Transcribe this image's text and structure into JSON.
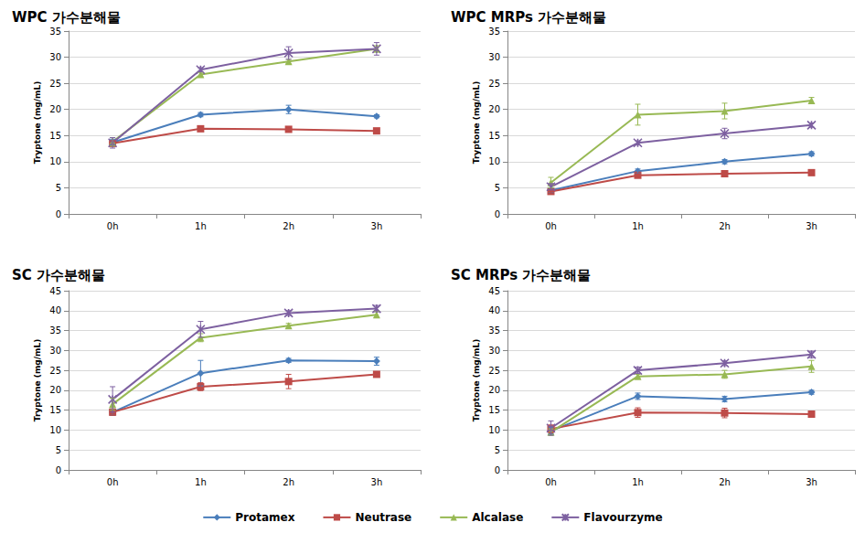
{
  "chart_data": [
    {
      "type": "line",
      "title": "WPC 가수분해물",
      "y_label": "Tryptone (mg/mL)",
      "categories": [
        "0h",
        "1h",
        "2h",
        "3h"
      ],
      "ylim": [
        0,
        35
      ],
      "yticks": [
        0,
        5,
        10,
        15,
        20,
        25,
        30,
        35
      ],
      "grid": true,
      "legend": "bottom",
      "series": [
        {
          "name": "Protamex",
          "color": "#4a7ebb",
          "marker": "diamond",
          "values": [
            13.7,
            19.0,
            20.0,
            18.7
          ],
          "errors": [
            0.6,
            0.4,
            0.8,
            0.3
          ]
        },
        {
          "name": "Neutrase",
          "color": "#be4b48",
          "marker": "square",
          "values": [
            13.5,
            16.3,
            16.2,
            15.9
          ],
          "errors": [
            0.5,
            0.3,
            0.4,
            0.3
          ]
        },
        {
          "name": "Alcalase",
          "color": "#98b954",
          "marker": "triangle",
          "values": [
            13.8,
            26.7,
            29.2,
            31.6
          ],
          "errors": [
            0.8,
            0.4,
            0.4,
            0.6
          ]
        },
        {
          "name": "Flavourzyme",
          "color": "#7d60a0",
          "marker": "x",
          "values": [
            13.6,
            27.6,
            30.8,
            31.6
          ],
          "errors": [
            1.0,
            0.4,
            1.2,
            1.2
          ]
        }
      ]
    },
    {
      "type": "line",
      "title": "WPC MRPs 가수분해물",
      "y_label": "Tryptone (mg/mL)",
      "categories": [
        "0h",
        "1h",
        "2h",
        "3h"
      ],
      "ylim": [
        0,
        35
      ],
      "yticks": [
        0,
        5,
        10,
        15,
        20,
        25,
        30,
        35
      ],
      "grid": true,
      "legend": "bottom",
      "series": [
        {
          "name": "Protamex",
          "color": "#4a7ebb",
          "marker": "diamond",
          "values": [
            4.5,
            8.2,
            10.0,
            11.5
          ],
          "errors": [
            0.5,
            0.4,
            0.4,
            0.4
          ]
        },
        {
          "name": "Neutrase",
          "color": "#be4b48",
          "marker": "square",
          "values": [
            4.3,
            7.4,
            7.7,
            7.9
          ],
          "errors": [
            0.4,
            0.3,
            0.3,
            0.3
          ]
        },
        {
          "name": "Alcalase",
          "color": "#98b954",
          "marker": "triangle",
          "values": [
            6.0,
            19.0,
            19.7,
            21.7
          ],
          "errors": [
            1.0,
            2.0,
            1.5,
            0.6
          ]
        },
        {
          "name": "Flavourzyme",
          "color": "#7d60a0",
          "marker": "x",
          "values": [
            5.2,
            13.6,
            15.4,
            17.0
          ],
          "errors": [
            0.6,
            0.4,
            1.0,
            0.4
          ]
        }
      ]
    },
    {
      "type": "line",
      "title": "SC 가수분해물",
      "y_label": "Tryptone (mg/mL)",
      "categories": [
        "0h",
        "1h",
        "2h",
        "3h"
      ],
      "ylim": [
        0,
        45
      ],
      "yticks": [
        0,
        5,
        10,
        15,
        20,
        25,
        30,
        35,
        40,
        45
      ],
      "grid": true,
      "legend": "bottom",
      "series": [
        {
          "name": "Protamex",
          "color": "#4a7ebb",
          "marker": "diamond",
          "values": [
            14.5,
            24.3,
            27.5,
            27.3
          ],
          "errors": [
            0.8,
            3.2,
            0.5,
            1.0
          ]
        },
        {
          "name": "Neutrase",
          "color": "#be4b48",
          "marker": "square",
          "values": [
            14.5,
            20.9,
            22.2,
            24.0
          ],
          "errors": [
            0.8,
            1.0,
            1.8,
            0.5
          ]
        },
        {
          "name": "Alcalase",
          "color": "#98b954",
          "marker": "triangle",
          "values": [
            16.5,
            33.2,
            36.2,
            39.0
          ],
          "errors": [
            1.5,
            1.0,
            0.6,
            0.8
          ]
        },
        {
          "name": "Flavourzyme",
          "color": "#7d60a0",
          "marker": "x",
          "values": [
            17.7,
            35.3,
            39.4,
            40.5
          ],
          "errors": [
            3.2,
            2.0,
            0.6,
            0.8
          ]
        }
      ]
    },
    {
      "type": "line",
      "title": "SC MRPs 가수분해물",
      "y_label": "Tryptone (mg/mL)",
      "categories": [
        "0h",
        "1h",
        "2h",
        "3h"
      ],
      "ylim": [
        0,
        45
      ],
      "yticks": [
        0,
        5,
        10,
        15,
        20,
        25,
        30,
        35,
        40,
        45
      ],
      "grid": true,
      "legend": "bottom",
      "series": [
        {
          "name": "Protamex",
          "color": "#4a7ebb",
          "marker": "diamond",
          "values": [
            9.8,
            18.5,
            17.8,
            19.5
          ],
          "errors": [
            0.8,
            0.8,
            0.7,
            0.5
          ]
        },
        {
          "name": "Neutrase",
          "color": "#be4b48",
          "marker": "square",
          "values": [
            10.3,
            14.4,
            14.3,
            14.0
          ],
          "errors": [
            1.0,
            1.2,
            1.2,
            0.4
          ]
        },
        {
          "name": "Alcalase",
          "color": "#98b954",
          "marker": "triangle",
          "values": [
            9.5,
            23.5,
            24.0,
            26.0
          ],
          "errors": [
            0.8,
            0.5,
            1.0,
            1.5
          ]
        },
        {
          "name": "Flavourzyme",
          "color": "#7d60a0",
          "marker": "x",
          "values": [
            10.5,
            25.0,
            26.8,
            29.0
          ],
          "errors": [
            1.8,
            0.8,
            0.6,
            0.8
          ]
        }
      ]
    }
  ]
}
